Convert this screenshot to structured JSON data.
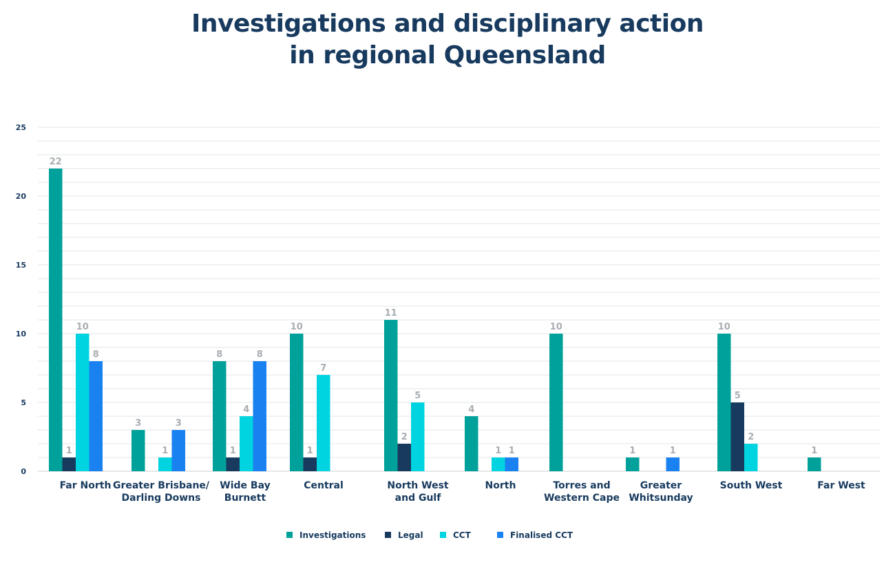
{
  "chart_data": {
    "type": "bar",
    "title_lines": [
      "Investigations and disciplinary action",
      "in regional Queensland"
    ],
    "categories": [
      [
        "Far North"
      ],
      [
        "Greater Brisbane/",
        "Darling Downs"
      ],
      [
        "Wide Bay",
        "Burnett"
      ],
      [
        "Central"
      ],
      [
        "North West",
        "and Gulf"
      ],
      [
        "North"
      ],
      [
        "Torres and",
        "Western Cape"
      ],
      [
        "Greater",
        "Whitsunday"
      ],
      [
        "South West"
      ],
      [
        "Far West"
      ]
    ],
    "series": [
      {
        "name": "Investigations",
        "color": "#00a19a",
        "values": [
          22,
          3,
          8,
          10,
          11,
          4,
          10,
          1,
          10,
          1
        ]
      },
      {
        "name": "Legal",
        "color": "#173a5e",
        "values": [
          1,
          null,
          1,
          1,
          2,
          null,
          null,
          null,
          5,
          null
        ]
      },
      {
        "name": "CCT",
        "color": "#00d4e0",
        "values": [
          10,
          1,
          4,
          7,
          5,
          1,
          null,
          null,
          2,
          null
        ]
      },
      {
        "name": "Finalised CCT",
        "color": "#1a82f0",
        "values": [
          8,
          3,
          8,
          null,
          null,
          1,
          null,
          1,
          null,
          null
        ]
      }
    ],
    "y_ticks": [
      0,
      5,
      10,
      15,
      20,
      25
    ],
    "ylim": [
      0,
      25
    ],
    "grid": true,
    "legend_position": "bottom-center"
  }
}
